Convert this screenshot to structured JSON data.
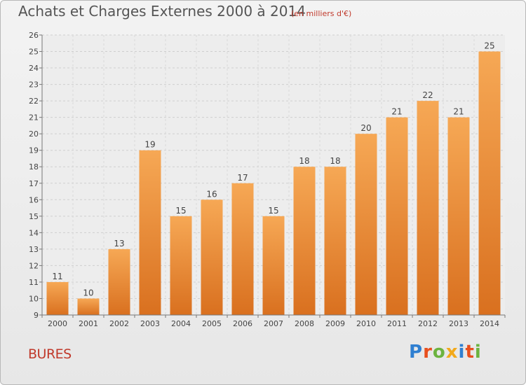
{
  "chart_data": {
    "type": "bar",
    "title": "Achats et Charges Externes 2000 à 2014",
    "subtitle": "(en milliers d'€)",
    "categories": [
      "2000",
      "2001",
      "2002",
      "2003",
      "2004",
      "2005",
      "2006",
      "2007",
      "2008",
      "2009",
      "2010",
      "2011",
      "2012",
      "2013",
      "2014"
    ],
    "values": [
      11,
      10,
      13,
      19,
      15,
      16,
      17,
      15,
      18,
      18,
      20,
      21,
      22,
      21,
      25
    ],
    "ylim": [
      9,
      26
    ],
    "yticks": [
      9,
      10,
      11,
      12,
      13,
      14,
      15,
      16,
      17,
      18,
      19,
      20,
      21,
      22,
      23,
      24,
      25,
      26
    ],
    "grid": true,
    "colors": {
      "bar_light": "#f6a855",
      "bar_dark": "#d9701f"
    }
  },
  "footer": {
    "place": "BURES",
    "logo_letters": [
      "P",
      "r",
      "o",
      "x",
      "i",
      "t",
      "i"
    ]
  }
}
